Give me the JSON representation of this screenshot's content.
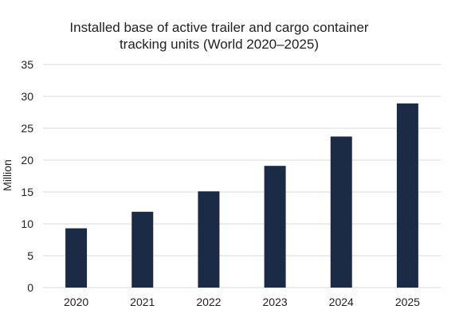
{
  "chart_data": {
    "type": "bar",
    "title_lines": [
      "Installed base of active trailer and cargo container",
      "tracking units (World 2020–2025)"
    ],
    "xlabel": "",
    "ylabel": "Million",
    "categories": [
      "2020",
      "2021",
      "2022",
      "2023",
      "2024",
      "2025"
    ],
    "series": [
      {
        "values": [
          9.3,
          11.9,
          15.1,
          19.1,
          23.7,
          28.9
        ]
      }
    ],
    "ylim": [
      0,
      35
    ],
    "yticks": [
      "0",
      "5",
      "10",
      "15",
      "20",
      "25",
      "30",
      "35"
    ],
    "grid": true,
    "bar_color": "#1b2a45",
    "grid_color": "#d9d9d9"
  }
}
